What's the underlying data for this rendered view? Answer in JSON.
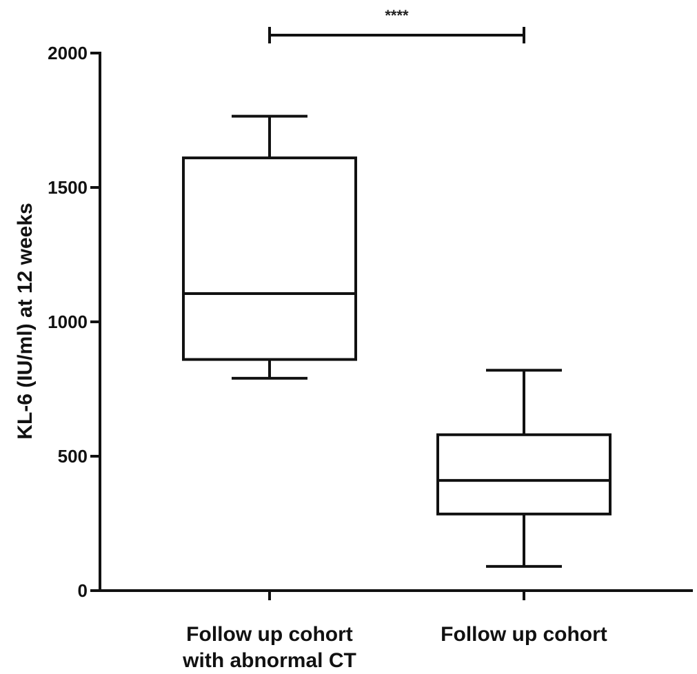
{
  "chart_data": {
    "type": "box",
    "ylabel": "KL-6 (IU/ml) at 12 weeks",
    "ylim": [
      0,
      2000
    ],
    "yticks": [
      0,
      500,
      1000,
      1500,
      2000
    ],
    "grid": false,
    "categories": [
      [
        "Follow up cohort",
        "with abnormal CT"
      ],
      [
        "Follow up cohort"
      ]
    ],
    "boxes": [
      {
        "min": 790,
        "q1": 860,
        "median": 1105,
        "q3": 1610,
        "max": 1765
      },
      {
        "min": 90,
        "q1": 285,
        "median": 410,
        "q3": 580,
        "max": 820
      }
    ],
    "significance": {
      "label": "****",
      "from": 0,
      "to": 1
    },
    "colors": {
      "stroke": "#111111",
      "fill": "#ffffff"
    }
  }
}
